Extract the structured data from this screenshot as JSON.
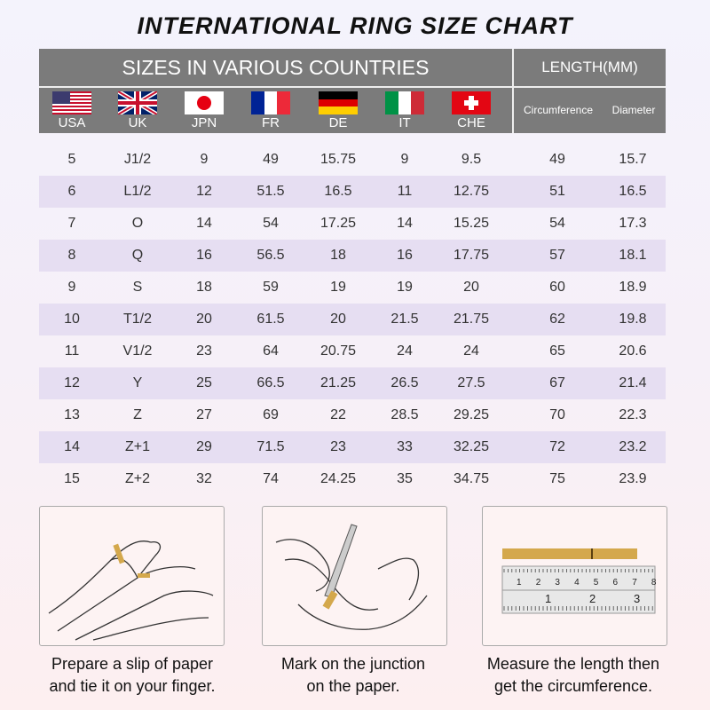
{
  "title": "INTERNATIONAL RING SIZE CHART",
  "header": {
    "sizes_label": "SIZES IN VARIOUS COUNTRIES",
    "length_label": "LENGTH(MM)",
    "circumference_label": "Circumference",
    "diameter_label": "Diameter"
  },
  "countries": [
    {
      "code": "USA",
      "flag": "usa-flag"
    },
    {
      "code": "UK",
      "flag": "uk-flag"
    },
    {
      "code": "JPN",
      "flag": "japan-flag"
    },
    {
      "code": "FR",
      "flag": "france-flag"
    },
    {
      "code": "DE",
      "flag": "germany-flag"
    },
    {
      "code": "IT",
      "flag": "italy-flag"
    },
    {
      "code": "CHE",
      "flag": "switzerland-flag"
    }
  ],
  "colors": {
    "header": "#7b7b7b",
    "alt_row": "#e6def2",
    "paper_strip": "#d4a84c"
  },
  "chart_data": {
    "type": "table",
    "title": "INTERNATIONAL RING SIZE CHART",
    "columns": [
      "USA",
      "UK",
      "JPN",
      "FR",
      "DE",
      "IT",
      "CHE",
      "Circumference",
      "Diameter"
    ],
    "rows": [
      [
        "5",
        "J1/2",
        "9",
        "49",
        "15.75",
        "9",
        "9.5",
        "49",
        "15.7"
      ],
      [
        "6",
        "L1/2",
        "12",
        "51.5",
        "16.5",
        "11",
        "12.75",
        "51",
        "16.5"
      ],
      [
        "7",
        "O",
        "14",
        "54",
        "17.25",
        "14",
        "15.25",
        "54",
        "17.3"
      ],
      [
        "8",
        "Q",
        "16",
        "56.5",
        "18",
        "16",
        "17.75",
        "57",
        "18.1"
      ],
      [
        "9",
        "S",
        "18",
        "59",
        "19",
        "19",
        "20",
        "60",
        "18.9"
      ],
      [
        "10",
        "T1/2",
        "20",
        "61.5",
        "20",
        "21.5",
        "21.75",
        "62",
        "19.8"
      ],
      [
        "11",
        "V1/2",
        "23",
        "64",
        "20.75",
        "24",
        "24",
        "65",
        "20.6"
      ],
      [
        "12",
        "Y",
        "25",
        "66.5",
        "21.25",
        "26.5",
        "27.5",
        "67",
        "21.4"
      ],
      [
        "13",
        "Z",
        "27",
        "69",
        "22",
        "28.5",
        "29.25",
        "70",
        "22.3"
      ],
      [
        "14",
        "Z+1",
        "29",
        "71.5",
        "23",
        "33",
        "32.25",
        "72",
        "23.2"
      ],
      [
        "15",
        "Z+2",
        "32",
        "74",
        "24.25",
        "35",
        "34.75",
        "75",
        "23.9"
      ]
    ]
  },
  "steps": [
    {
      "line1": "Prepare a slip of paper",
      "line2": "and tie it on your finger."
    },
    {
      "line1": "Mark on the junction",
      "line2": "on the paper."
    },
    {
      "line1": "Measure the length then",
      "line2": "get the circumference."
    }
  ],
  "ruler": {
    "top_marks": [
      "1",
      "2",
      "3",
      "4",
      "5",
      "6",
      "7",
      "8"
    ],
    "bottom_marks": [
      "1",
      "2",
      "3"
    ]
  }
}
